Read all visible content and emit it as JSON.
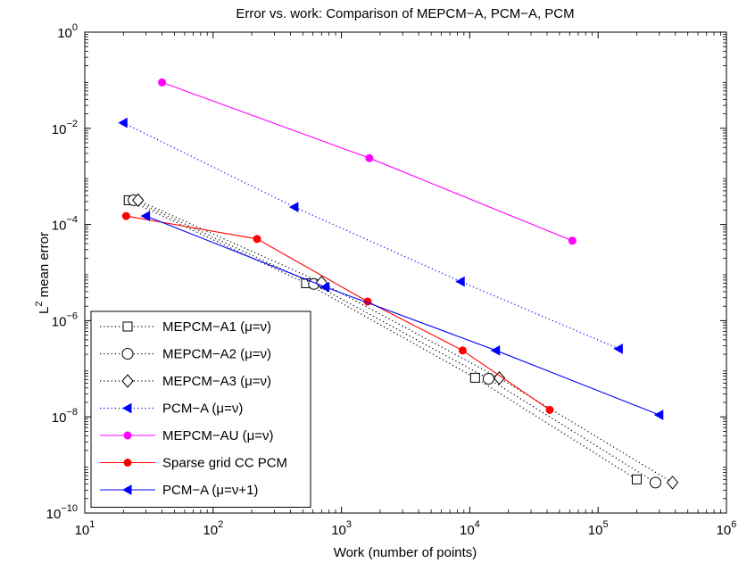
{
  "chart_data": {
    "type": "line",
    "title": "Error vs. work: Comparison of MEPCM−A, PCM−A, PCM",
    "xlabel": "Work (number of points)",
    "ylabel_base": "L",
    "ylabel_sup": "2",
    "ylabel_rest": " mean error",
    "x_scale": "log",
    "y_scale": "log",
    "xlim": [
      10,
      1000000
    ],
    "ylim": [
      1e-10,
      1
    ],
    "grid": false,
    "legend_position": "bottom-left",
    "x_ticks": [
      {
        "value": 10,
        "base": "10",
        "exp": "1"
      },
      {
        "value": 100,
        "base": "10",
        "exp": "2"
      },
      {
        "value": 1000,
        "base": "10",
        "exp": "3"
      },
      {
        "value": 10000,
        "base": "10",
        "exp": "4"
      },
      {
        "value": 100000,
        "base": "10",
        "exp": "5"
      },
      {
        "value": 1000000,
        "base": "10",
        "exp": "6"
      }
    ],
    "y_ticks": [
      {
        "value": 1e-10,
        "base": "10",
        "exp": "−10"
      },
      {
        "value": 1e-08,
        "base": "10",
        "exp": "−8"
      },
      {
        "value": 1e-06,
        "base": "10",
        "exp": "−6"
      },
      {
        "value": 0.0001,
        "base": "10",
        "exp": "−4"
      },
      {
        "value": 0.01,
        "base": "10",
        "exp": "−2"
      },
      {
        "value": 1,
        "base": "10",
        "exp": "0"
      }
    ],
    "series": [
      {
        "name": "MEPCM−A1 (μ=ν)",
        "color": "#000000",
        "line": "dotted",
        "marker": "square",
        "x": [
          22,
          530,
          11000,
          200000
        ],
        "y": [
          0.00032,
          6e-06,
          6.5e-08,
          5e-10
        ]
      },
      {
        "name": "MEPCM−A2 (μ=ν)",
        "color": "#000000",
        "line": "dotted",
        "marker": "circle",
        "x": [
          24,
          610,
          14000,
          280000
        ],
        "y": [
          0.00032,
          5.8e-06,
          6.2e-08,
          4.3e-10
        ]
      },
      {
        "name": "MEPCM−A3 (μ=ν)",
        "color": "#000000",
        "line": "dotted",
        "marker": "diamond",
        "x": [
          26,
          700,
          17000,
          380000
        ],
        "y": [
          0.00032,
          6.2e-06,
          6.4e-08,
          4.3e-10
        ]
      },
      {
        "name": "PCM−A (μ=ν)",
        "color": "#0000ff",
        "line": "dotted",
        "marker": "triangle-left",
        "x": [
          20,
          430,
          8500,
          145000
        ],
        "y": [
          0.013,
          0.00023,
          6.5e-06,
          2.6e-07
        ]
      },
      {
        "name": "MEPCM−AU (μ=ν)",
        "color": "#ff00ff",
        "line": "solid",
        "marker": "dot",
        "x": [
          40,
          1650,
          63000
        ],
        "y": [
          0.09,
          0.0024,
          4.6e-05
        ]
      },
      {
        "name": "Sparse grid CC PCM",
        "color": "#ff0000",
        "line": "solid",
        "marker": "dot",
        "x": [
          21,
          220,
          1600,
          8800,
          42000
        ],
        "y": [
          0.00015,
          5e-05,
          2.5e-06,
          2.4e-07,
          1.4e-08
        ]
      },
      {
        "name": "PCM−A (μ=ν+1)",
        "color": "#0000ff",
        "line": "solid",
        "marker": "triangle-left",
        "x": [
          30,
          750,
          16000,
          300000
        ],
        "y": [
          0.00015,
          5e-06,
          2.4e-07,
          1.1e-08
        ]
      }
    ]
  }
}
